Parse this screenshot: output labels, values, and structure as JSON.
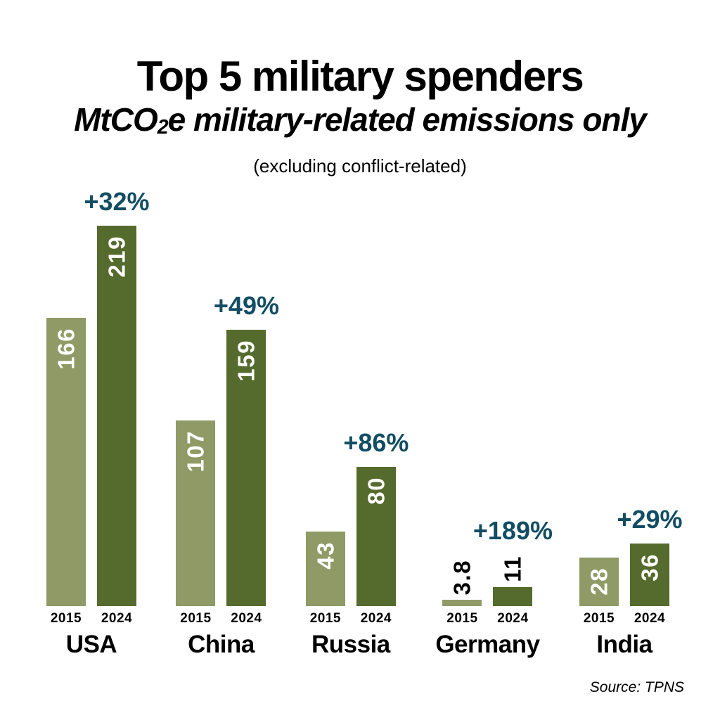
{
  "header": {
    "title": "Top 5 military spenders",
    "subtitle": {
      "prefix": "MtCO",
      "sub": "2",
      "suffix": "e military-related emissions only"
    },
    "note": "(excluding conflict-related)"
  },
  "chart_data": {
    "type": "bar",
    "title": "Top 5 military spenders",
    "subtitle": "MtCO2e military-related emissions only (excluding conflict-related)",
    "unit": "MtCO2e",
    "categories": [
      "USA",
      "China",
      "Russia",
      "Germany",
      "India"
    ],
    "series": [
      {
        "name": "2015",
        "values": [
          166,
          107,
          43,
          3.8,
          28
        ],
        "labels": [
          "166",
          "107",
          "43",
          "3.8",
          "28"
        ]
      },
      {
        "name": "2024",
        "values": [
          219,
          159,
          80,
          11,
          36
        ],
        "labels": [
          "219",
          "159",
          "80",
          "11",
          "36"
        ]
      }
    ],
    "change_labels": [
      "+32%",
      "+49%",
      "+86%",
      "+189%",
      "+29%"
    ],
    "ylim": [
      0,
      230
    ],
    "grid": false,
    "legend": "none",
    "orientation": "vertical"
  },
  "footer": {
    "source": "Source: TPNS"
  },
  "colors": {
    "background": "#ffffff",
    "bar_2015": "#8f9a66",
    "bar_2024": "#556b2d",
    "percent_label": "#124d63",
    "value_inside": "#ffffff",
    "value_outside": "#000000",
    "text": "#000000"
  }
}
